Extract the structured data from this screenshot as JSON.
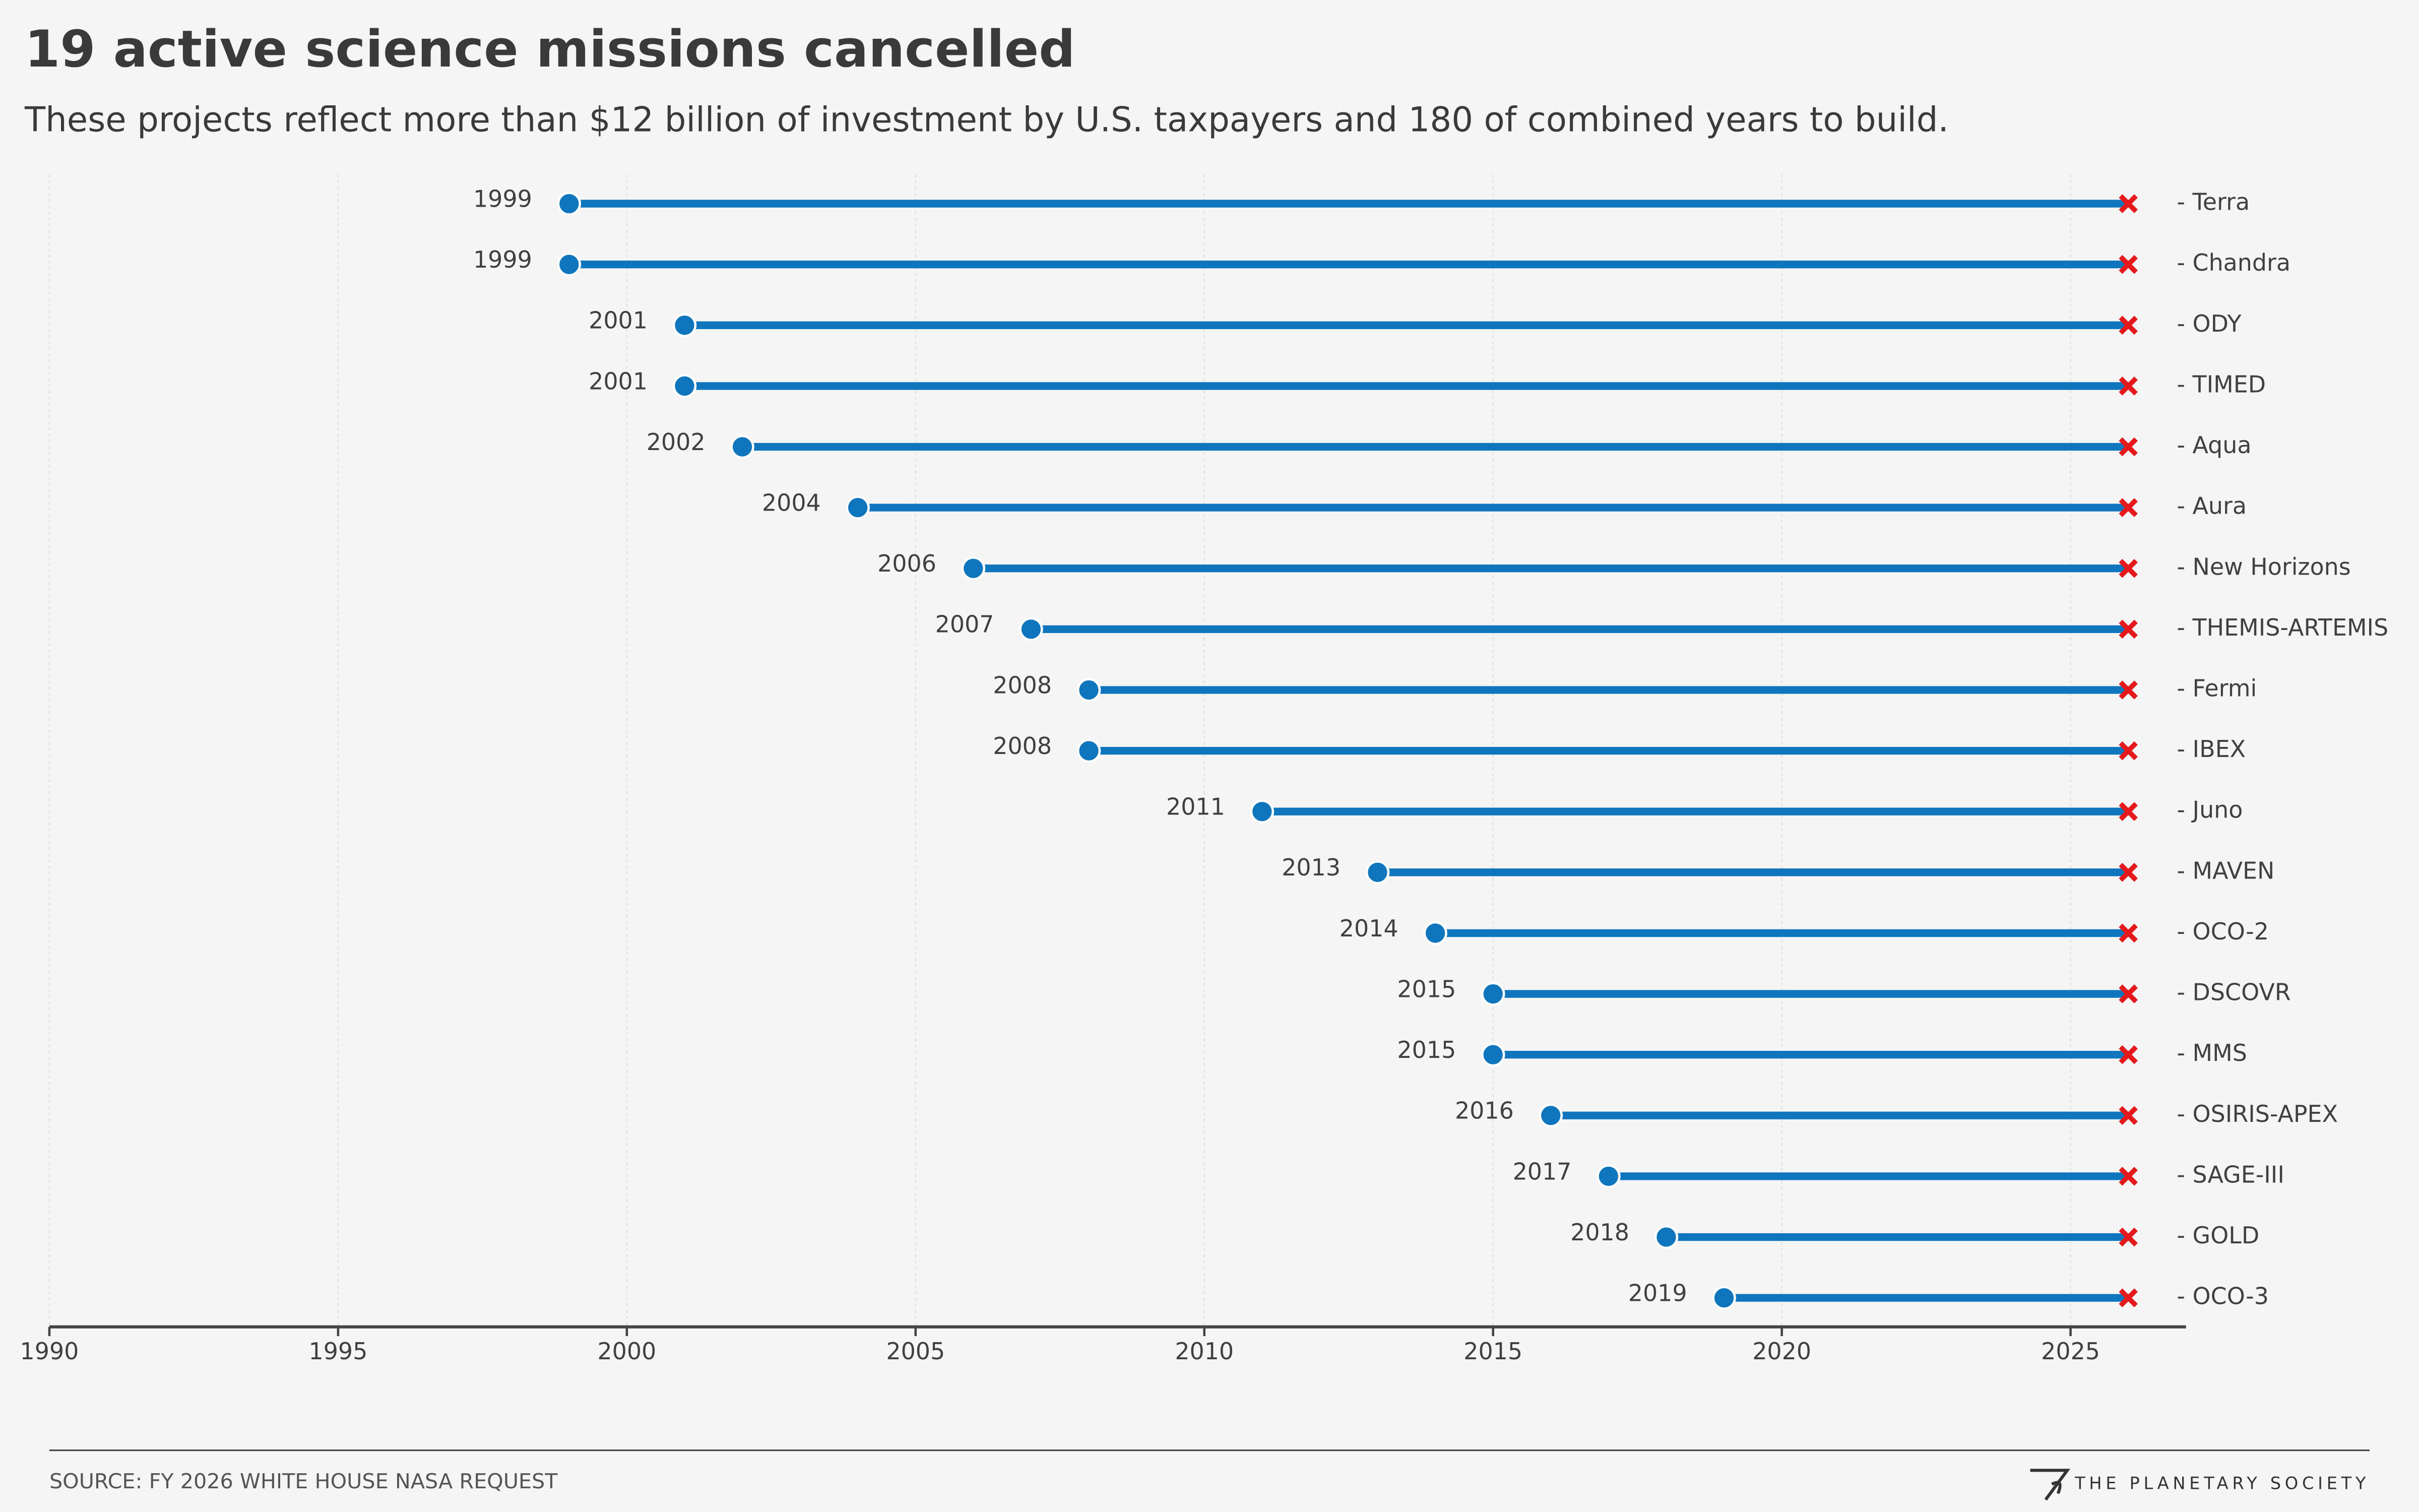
{
  "chart_data": {
    "type": "dumbbell",
    "title": "19 active science missions cancelled",
    "subtitle": "These projects reflect more than $12 billion of investment by U.S. taxpayers and 180 of combined years to build.",
    "categories": [
      "- Terra",
      "- Chandra",
      "- ODY",
      "- TIMED",
      "- Aqua",
      "- Aura",
      "- New Horizons",
      "- THEMIS-ARTEMIS",
      "- Fermi",
      "- IBEX",
      "- Juno",
      "- MAVEN",
      "- OCO-2",
      "- DSCOVR",
      "- MMS",
      "- OSIRIS-APEX",
      "- SAGE-III",
      "- GOLD",
      "- OCO-3"
    ],
    "start": [
      1999,
      1999,
      2001,
      2001,
      2002,
      2004,
      2006,
      2007,
      2008,
      2008,
      2011,
      2013,
      2014,
      2015,
      2015,
      2016,
      2017,
      2018,
      2019
    ],
    "end": [
      2026,
      2026,
      2026,
      2026,
      2026,
      2026,
      2026,
      2026,
      2026,
      2026,
      2026,
      2026,
      2026,
      2026,
      2026,
      2026,
      2026,
      2026,
      2026
    ],
    "color": "#0f75bc",
    "end_color": "#e5191c",
    "xlim": [
      1990,
      2027
    ],
    "xticks": [
      1990,
      1995,
      2000,
      2005,
      2010,
      2015,
      2020,
      2025
    ],
    "grid": true,
    "source": "SOURCE: FY 2026 WHITE HOUSE NASA REQUEST",
    "brand": "THE PLANETARY SOCIETY"
  }
}
